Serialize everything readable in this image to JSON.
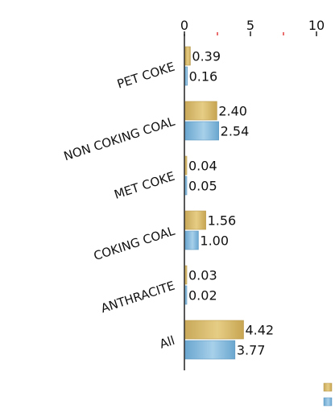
{
  "chart_data": {
    "type": "bar",
    "orientation": "horizontal",
    "categories": [
      "PET COKE",
      "NON COKING COAL",
      "MET COKE",
      "COKING COAL",
      "ANTHRACITE",
      "All"
    ],
    "series": [
      {
        "values": [
          0.39,
          2.4,
          0.04,
          1.56,
          0.03,
          4.42
        ],
        "labels": [
          "0.39",
          "2.40",
          "0.04",
          "1.56",
          "0.03",
          "4.42"
        ],
        "color": "#d9bd6a"
      },
      {
        "values": [
          0.16,
          2.54,
          0.05,
          1.0,
          0.02,
          3.77
        ],
        "labels": [
          "0.16",
          "2.54",
          "0.05",
          "1.00",
          "0.02",
          "3.77"
        ],
        "color": "#7fb6d9"
      }
    ],
    "x_ticks": [
      "0",
      "5",
      "10"
    ],
    "xlim": [
      0,
      10
    ],
    "minor_ticks": [
      2.5,
      7.5
    ],
    "minor_tick_color": "#e03030",
    "axis_position": "top",
    "grid": false,
    "legend": {
      "placement": "bottom-right",
      "show_labels": false
    }
  }
}
